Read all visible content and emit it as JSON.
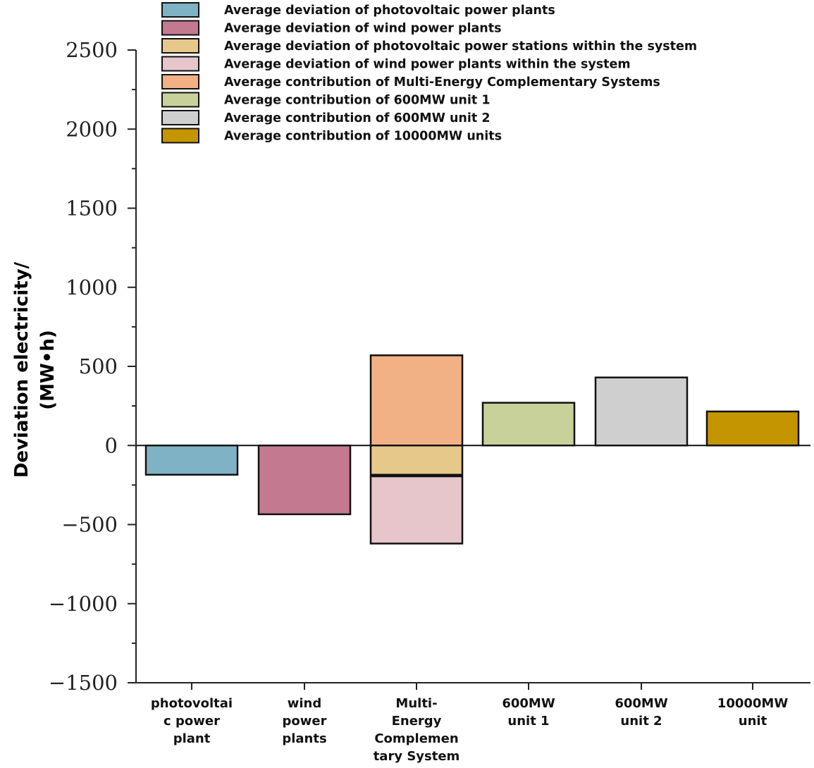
{
  "chart_data": {
    "type": "bar",
    "title": "",
    "xlabel": "",
    "ylabel_line1": "Deviation electricity/",
    "ylabel_line2": "(MW•h)",
    "ylim": [
      -1500,
      2500
    ],
    "yticks": [
      -1500,
      -1000,
      -500,
      0,
      500,
      1000,
      1500,
      2000,
      2500
    ],
    "ytick_labels": [
      "−1500",
      "−1000",
      "−500",
      "0",
      "500",
      "1000",
      "1500",
      "2000",
      "2500"
    ],
    "categories": [
      [
        "photovoltai",
        "c power",
        "plant"
      ],
      [
        "wind",
        "power",
        "plants"
      ],
      [
        "Multi-",
        "Energy",
        "Complemen",
        "tary System"
      ],
      [
        "600MW",
        "unit 1"
      ],
      [
        "600MW",
        "unit 2"
      ],
      [
        "10000MW",
        "unit"
      ]
    ],
    "legend_position": "top",
    "series": [
      {
        "name": "Average deviation of photovoltaic power plants",
        "color": "#7fb2c4",
        "category": 0,
        "from": 0,
        "to": -185
      },
      {
        "name": "Average deviation of wind power plants",
        "color": "#c37a91",
        "category": 1,
        "from": 0,
        "to": -435
      },
      {
        "name": "Average deviation of photovoltaic power stations within the system",
        "color": "#e6c98a",
        "category": 2,
        "from": 0,
        "to": -185
      },
      {
        "name": "Average deviation of wind power plants within the system",
        "color": "#e6c5cb",
        "category": 2,
        "from": -195,
        "to": -620
      },
      {
        "name": "Average contribution of Multi-Energy  Complementary Systems",
        "color": "#f2b185",
        "category": 2,
        "from": 0,
        "to": 570
      },
      {
        "name": "Average contribution of 600MW unit 1",
        "color": "#c8d19a",
        "category": 3,
        "from": 0,
        "to": 270
      },
      {
        "name": "Average contribution of 600MW unit 2",
        "color": "#cfcfcf",
        "category": 4,
        "from": 0,
        "to": 430
      },
      {
        "name": "Average contribution of 10000MW units",
        "color": "#c59500",
        "category": 5,
        "from": 0,
        "to": 215
      }
    ]
  }
}
